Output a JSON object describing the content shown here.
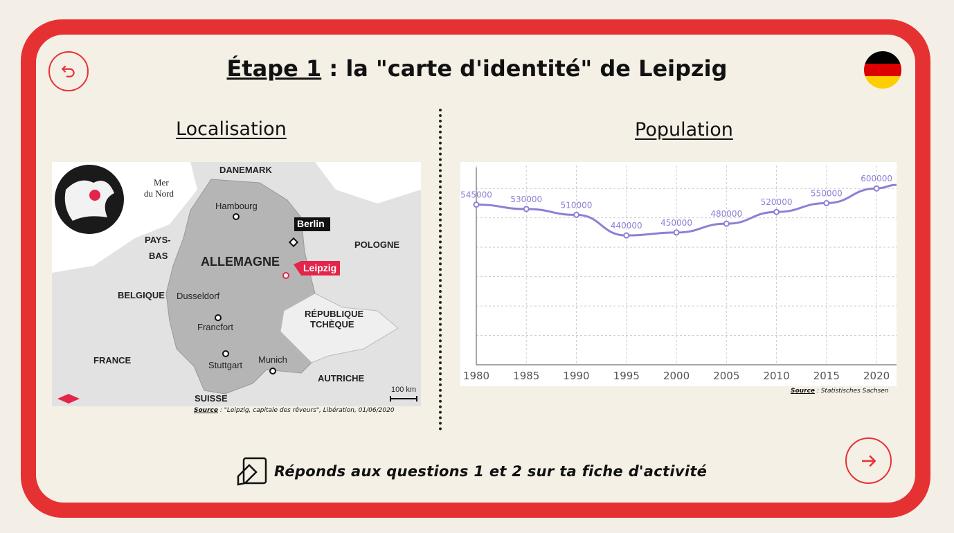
{
  "header": {
    "title_prefix": "Étape 1",
    "title_rest": " : la \"carte d'identité\" de Leipzig"
  },
  "nav": {
    "back_icon": "undo-arrow-icon",
    "next_icon": "arrow-right-icon",
    "flag_colors": [
      "#000000",
      "#dd0000",
      "#ffce00"
    ]
  },
  "left": {
    "heading": "Localisation",
    "map_labels": {
      "danemark": "DANEMARK",
      "mer": "Mer",
      "mer2": "du Nord",
      "hambourg": "Hambourg",
      "berlin": "Berlin",
      "pays": "PAYS-",
      "bas": "BAS",
      "allemagne": "ALLEMAGNE",
      "leipzig": "Leipzig",
      "pologne": "POLOGNE",
      "belgique": "BELGIQUE",
      "dusseldorf": "Dusseldorf",
      "francfort": "Francfort",
      "republique": "RÉPUBLIQUE",
      "tcheque": "TCHÈQUE",
      "france": "FRANCE",
      "stuttgart": "Stuttgart",
      "munich": "Munich",
      "autriche": "AUTRICHE",
      "suisse": "SUISSE",
      "scale": "100 km"
    },
    "source_label": "Source",
    "source_text": " : \"Leipzig, capitale des rêveurs\", Libération, 01/06/2020"
  },
  "right": {
    "heading": "Population",
    "source_label": "Source",
    "source_text": " : Statistisches Sachsen"
  },
  "chart_data": {
    "type": "line",
    "title": "",
    "xlabel": "",
    "ylabel": "",
    "x": [
      1980,
      1985,
      1990,
      1995,
      2000,
      2005,
      2010,
      2015,
      2020
    ],
    "values": [
      545000,
      530000,
      510000,
      440000,
      450000,
      480000,
      520000,
      550000,
      600000
    ],
    "labels": [
      "545000",
      "530000",
      "510000",
      "440000",
      "450000",
      "480000",
      "520000",
      "550000",
      "600000"
    ],
    "xlim": [
      1980,
      2022
    ],
    "ylim": [
      0,
      690000
    ],
    "grid": true,
    "color": "#8b80d6"
  },
  "footer": {
    "icon": "notes-pencil-icon",
    "text": "Réponds aux questions 1 et 2 sur ta fiche d'activité"
  }
}
